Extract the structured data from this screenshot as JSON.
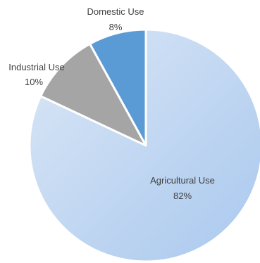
{
  "chart_data": {
    "type": "pie",
    "slices": [
      {
        "label": "Domestic Use",
        "value": 8,
        "display": "8%",
        "color": "#5b9bd5"
      },
      {
        "label": "Industrial Use",
        "value": 10,
        "display": "10%",
        "color": "#a5a5a5"
      },
      {
        "label": "Agricultural Use",
        "value": 82,
        "display": "82%",
        "color": "#c5daf2"
      }
    ],
    "start": "12 o'clock",
    "direction": "counterclockwise",
    "legend": "none",
    "labels": "category name and percentage",
    "colors": {
      "agricultural_gradient_light": "#dbe7f6",
      "agricultural_gradient_dark": "#a9c8ee",
      "slice_border": "#ffffff",
      "label_text": "#404040"
    }
  }
}
